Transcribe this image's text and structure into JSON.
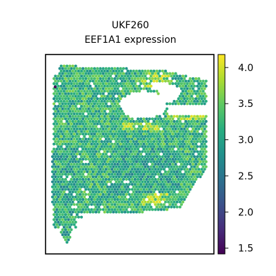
{
  "chart_data": {
    "type": "heatmap",
    "title_lines": [
      "UKF260",
      "EEF1A1 expression"
    ],
    "colormap": "viridis",
    "colorbar": {
      "range": [
        1.42,
        4.18
      ],
      "ticks": [
        {
          "value": 1.5,
          "label": "1.5"
        },
        {
          "value": 2.0,
          "label": "2.0"
        },
        {
          "value": 2.5,
          "label": "2.5"
        },
        {
          "value": 3.0,
          "label": "3.0"
        },
        {
          "value": 3.5,
          "label": "3.5"
        },
        {
          "value": 4.0,
          "label": "4.0"
        }
      ]
    },
    "value_summary": {
      "typical_min": 2.4,
      "typical_max": 4.1,
      "mean": 3.2,
      "outlier_min": 1.45
    },
    "axes_visible": false
  }
}
